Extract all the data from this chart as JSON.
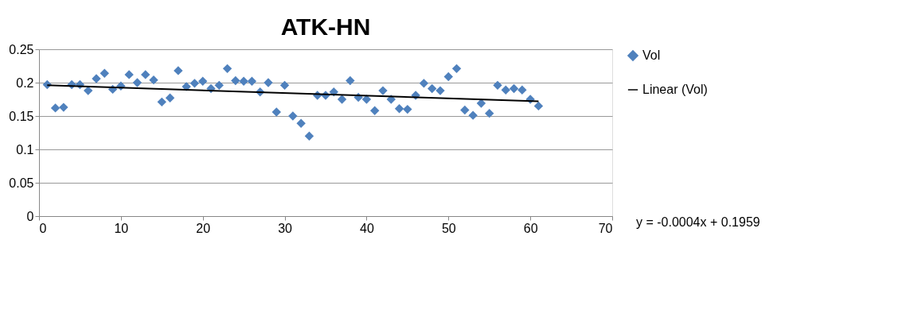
{
  "chart_data": {
    "type": "scatter",
    "title": "ATK-HN",
    "grid": "y",
    "legend": "right",
    "xlim": [
      0,
      70
    ],
    "xticks": [
      0,
      10,
      20,
      30,
      40,
      50,
      60,
      70
    ],
    "ylim": [
      0,
      0.25
    ],
    "yticks": [
      0,
      0.05,
      0.1,
      0.15,
      0.2,
      0.25
    ],
    "x": [
      1,
      2,
      3,
      4,
      5,
      6,
      7,
      8,
      9,
      10,
      11,
      12,
      13,
      14,
      15,
      16,
      17,
      18,
      19,
      20,
      21,
      22,
      23,
      24,
      25,
      26,
      27,
      28,
      29,
      30,
      31,
      32,
      33,
      34,
      35,
      36,
      37,
      38,
      39,
      40,
      41,
      42,
      43,
      44,
      45,
      46,
      47,
      48,
      49,
      50,
      51,
      52,
      53,
      54,
      55,
      56,
      57,
      58,
      59,
      60,
      61
    ],
    "series": [
      {
        "name": "Vol",
        "color": "#4f81bd",
        "marker": "diamond",
        "values": [
          0.197,
          0.162,
          0.163,
          0.197,
          0.197,
          0.188,
          0.206,
          0.214,
          0.19,
          0.195,
          0.212,
          0.2,
          0.212,
          0.204,
          0.171,
          0.177,
          0.218,
          0.194,
          0.199,
          0.202,
          0.191,
          0.196,
          0.221,
          0.203,
          0.202,
          0.202,
          0.186,
          0.2,
          0.156,
          0.196,
          0.15,
          0.139,
          0.12,
          0.181,
          0.181,
          0.186,
          0.175,
          0.203,
          0.178,
          0.175,
          0.158,
          0.188,
          0.175,
          0.161,
          0.16,
          0.181,
          0.199,
          0.191,
          0.188,
          0.209,
          0.221,
          0.159,
          0.151,
          0.169,
          0.154,
          0.196,
          0.189,
          0.191,
          0.189,
          0.175,
          0.165
        ]
      },
      {
        "name": "Linear (Vol)",
        "type": "line",
        "color": "#000000",
        "x": [
          1,
          61
        ],
        "values": [
          0.196,
          0.172
        ]
      }
    ],
    "annotations": [
      "y = -0.0004x + 0.1959"
    ]
  }
}
